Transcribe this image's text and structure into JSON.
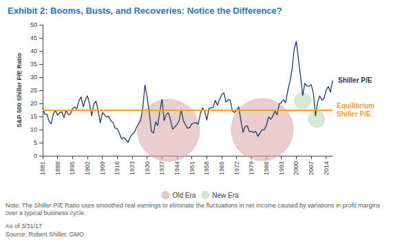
{
  "chart_data": {
    "type": "line",
    "title": "Exhibit 2: Booms, Busts, and Recoveries: Notice the Difference?",
    "y_label": "S&P 500 Shiller P/E Ratio",
    "x": [
      1881,
      1882,
      1883,
      1884,
      1885,
      1886,
      1887,
      1888,
      1889,
      1890,
      1891,
      1892,
      1893,
      1894,
      1895,
      1896,
      1897,
      1898,
      1899,
      1900,
      1901,
      1902,
      1903,
      1904,
      1905,
      1906,
      1907,
      1908,
      1909,
      1910,
      1911,
      1912,
      1913,
      1914,
      1915,
      1916,
      1917,
      1918,
      1919,
      1920,
      1921,
      1922,
      1923,
      1924,
      1925,
      1926,
      1927,
      1928,
      1929,
      1930,
      1931,
      1932,
      1933,
      1934,
      1935,
      1936,
      1937,
      1938,
      1939,
      1940,
      1941,
      1942,
      1943,
      1944,
      1945,
      1946,
      1947,
      1948,
      1949,
      1950,
      1951,
      1952,
      1953,
      1954,
      1955,
      1956,
      1957,
      1958,
      1959,
      1960,
      1961,
      1962,
      1963,
      1964,
      1965,
      1966,
      1967,
      1968,
      1969,
      1970,
      1971,
      1972,
      1973,
      1974,
      1975,
      1976,
      1977,
      1978,
      1979,
      1980,
      1981,
      1982,
      1983,
      1984,
      1985,
      1986,
      1987,
      1988,
      1989,
      1990,
      1991,
      1992,
      1993,
      1994,
      1995,
      1996,
      1997,
      1998,
      1999,
      2000,
      2001,
      2002,
      2003,
      2004,
      2005,
      2006,
      2007,
      2008,
      2009,
      2010,
      2011,
      2012,
      2013,
      2014,
      2015,
      2016,
      2017
    ],
    "series": [
      {
        "name": "Shiller P/E",
        "color": "#1f3864",
        "values": [
          18.5,
          15.8,
          15.8,
          13.2,
          12.2,
          16.0,
          17.3,
          15.4,
          16.5,
          16.8,
          14.5,
          17.5,
          15.7,
          15.9,
          18.0,
          18.6,
          17.9,
          20.9,
          22.5,
          18.7,
          21.3,
          22.9,
          19.7,
          15.2,
          19.8,
          20.9,
          17.4,
          12.5,
          16.5,
          15.7,
          14.8,
          15.0,
          13.3,
          12.7,
          10.6,
          10.3,
          8.6,
          6.4,
          7.0,
          6.2,
          5.1,
          7.0,
          8.2,
          8.9,
          10.8,
          12.3,
          13.6,
          18.4,
          27.1,
          22.3,
          16.7,
          9.3,
          8.7,
          13.0,
          11.5,
          17.1,
          21.6,
          13.3,
          15.9,
          16.4,
          13.5,
          10.1,
          11.1,
          11.9,
          13.3,
          17.6,
          13.4,
          11.9,
          10.5,
          10.8,
          12.2,
          12.5,
          12.6,
          12.0,
          16.1,
          18.3,
          17.1,
          13.6,
          18.0,
          18.3,
          18.4,
          21.2,
          19.3,
          21.6,
          23.3,
          24.1,
          20.4,
          21.5,
          21.2,
          17.1,
          16.5,
          17.3,
          18.7,
          13.5,
          8.9,
          11.2,
          11.4,
          9.2,
          9.3,
          8.9,
          9.3,
          7.4,
          8.8,
          9.9,
          10.0,
          11.7,
          14.9,
          13.9,
          15.1,
          17.1,
          15.6,
          19.8,
          20.3,
          21.4,
          20.2,
          24.8,
          28.3,
          32.9,
          40.6,
          43.8,
          36.9,
          30.3,
          22.9,
          27.7,
          26.6,
          26.5,
          27.2,
          24.0,
          15.2,
          20.5,
          22.9,
          21.2,
          21.9,
          24.9,
          26.5,
          24.2,
          28.7
        ]
      },
      {
        "name": "Old Era",
        "type": "scatter",
        "marker": "circle",
        "color": "#d8a6a6",
        "x": [
          1940,
          1984
        ],
        "values": [
          9.7,
          10
        ]
      },
      {
        "name": "New Era",
        "type": "scatter",
        "marker": "circle",
        "color": "#b7d7b4",
        "x": [
          2003,
          2009.5
        ],
        "values": [
          21,
          14
        ]
      }
    ],
    "equilibrium": {
      "label": "Equilibrium Shiller P/E",
      "value": 17.5,
      "color": "#f0a030"
    },
    "xlim": [
      1881,
      2017
    ],
    "xticks": [
      1881,
      1888,
      1895,
      1902,
      1909,
      1916,
      1923,
      1930,
      1937,
      1944,
      1951,
      1958,
      1965,
      1972,
      1979,
      1986,
      1993,
      2000,
      2007,
      2014
    ],
    "ylim": [
      0,
      50
    ],
    "yticks": [
      0,
      5,
      10,
      15,
      20,
      25,
      30,
      35,
      40,
      45,
      50
    ],
    "grid": false,
    "legend": "bottom",
    "notes": [
      "Note: The Shiller P/E Ratio uses smoothed real earnings to eliminate the fluctuations in net income caused by variations in profit margins over a typical business cycle.",
      "As of 3/31/17",
      "Source: Robert Shiller, GMO"
    ]
  }
}
